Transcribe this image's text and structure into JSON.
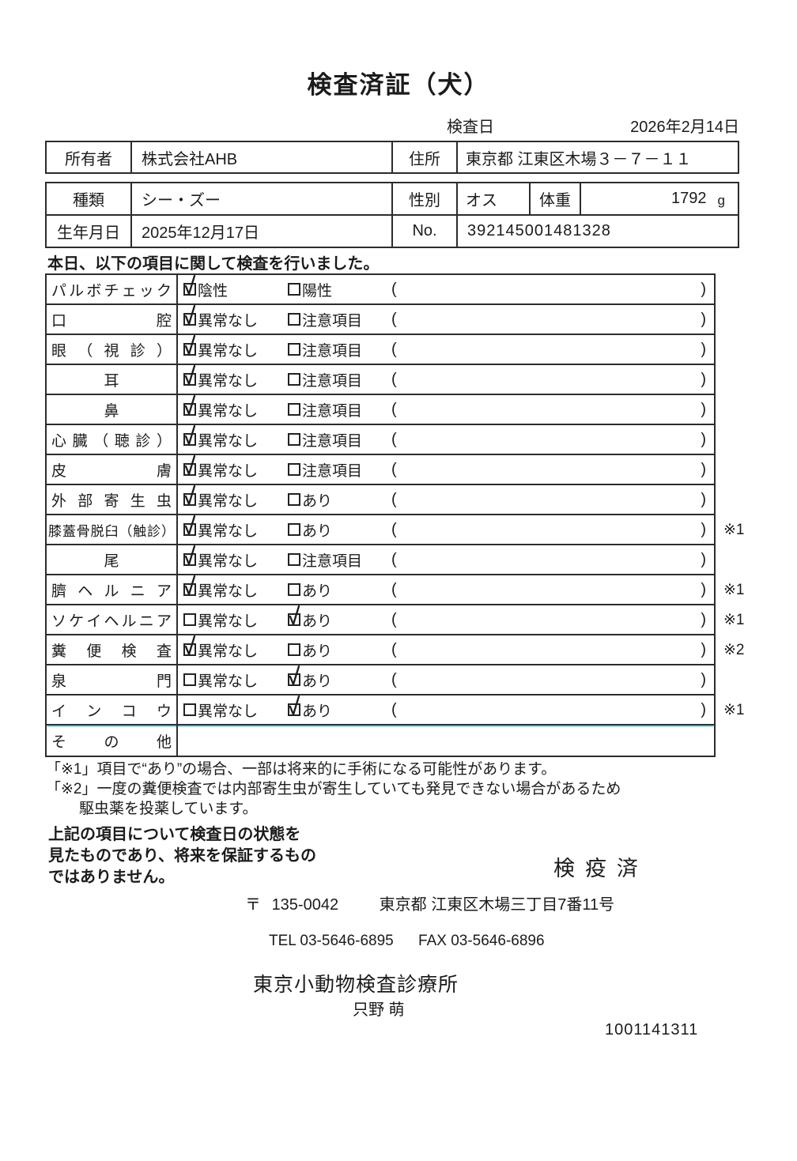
{
  "title": "検査済証（犬）",
  "exam_date": {
    "label": "検査日",
    "value": "2026年2月14日"
  },
  "owner": {
    "label": "所有者",
    "value": "株式会社AHB",
    "address_label": "住所",
    "address_value": "東京都 江東区木場３－７－１１"
  },
  "pet": {
    "breed_label": "種類",
    "breed_value": "シー・ズー",
    "sex_label": "性別",
    "sex_value": "オス",
    "weight_label": "体重",
    "weight_value": "1792",
    "weight_unit": "g",
    "birth_label": "生年月日",
    "birth_value": "2025年12月17日",
    "no_label": "No.",
    "no_value": "392145001481328"
  },
  "intro_text": "本日、以下の項目に関して検査を行いました。",
  "exam_table": {
    "paren_open": "(",
    "paren_close": ")",
    "rows": [
      {
        "label": "パルボチェック",
        "opt1": "陰性",
        "opt2": "陽性",
        "checked": "opt1",
        "note": ""
      },
      {
        "label": "口腔",
        "opt1": "異常なし",
        "opt2": "注意項目",
        "checked": "opt1",
        "note": ""
      },
      {
        "label": "眼（視診）",
        "opt1": "異常なし",
        "opt2": "注意項目",
        "checked": "opt1",
        "note": ""
      },
      {
        "label": "耳",
        "opt1": "異常なし",
        "opt2": "注意項目",
        "checked": "opt1",
        "note": ""
      },
      {
        "label": "鼻",
        "opt1": "異常なし",
        "opt2": "注意項目",
        "checked": "opt1",
        "note": ""
      },
      {
        "label": "心臓（聴診）",
        "opt1": "異常なし",
        "opt2": "注意項目",
        "checked": "opt1",
        "note": ""
      },
      {
        "label": "皮膚",
        "opt1": "異常なし",
        "opt2": "注意項目",
        "checked": "opt1",
        "note": ""
      },
      {
        "label": "外部寄生虫",
        "opt1": "異常なし",
        "opt2": "あり",
        "checked": "opt1",
        "note": ""
      },
      {
        "label": "膝蓋骨脱臼（触診）",
        "opt1": "異常なし",
        "opt2": "あり",
        "checked": "opt1",
        "note": "※1"
      },
      {
        "label": "尾",
        "opt1": "異常なし",
        "opt2": "注意項目",
        "checked": "opt1",
        "note": ""
      },
      {
        "label": "臍ヘルニア",
        "opt1": "異常なし",
        "opt2": "あり",
        "checked": "opt1",
        "note": "※1"
      },
      {
        "label": "ソケイヘルニア",
        "opt1": "異常なし",
        "opt2": "あり",
        "checked": "opt2",
        "note": "※1"
      },
      {
        "label": "糞便検査",
        "opt1": "異常なし",
        "opt2": "あり",
        "checked": "opt1",
        "note": "※2"
      },
      {
        "label": "泉門",
        "opt1": "異常なし",
        "opt2": "あり",
        "checked": "opt2",
        "note": ""
      },
      {
        "label": "インコウ",
        "opt1": "異常なし",
        "opt2": "あり",
        "checked": "opt2",
        "note": "※1"
      },
      {
        "label": "その他",
        "opt1": "",
        "opt2": "",
        "checked": "",
        "note": ""
      }
    ]
  },
  "footnotes": {
    "line1": "「※1」項目で“あり”の場合、一部は将来的に手術になる可能性があります。",
    "line2": "「※2」一度の糞便検査では内部寄生虫が寄生していても発見できない場合があるため",
    "line3": "駆虫薬を投薬しています。"
  },
  "disclaimer": {
    "line1": "上記の項目について検査日の状態を",
    "line2": "見たものであり、将来を保証するもの",
    "line3": "ではありません。"
  },
  "stamp": "検疫済",
  "clinic": {
    "postal_mark": "〒",
    "postal_code": "135-0042",
    "address": "東京都 江東区木場三丁目7番11号",
    "tel": "TEL 03-5646-6895",
    "fax": "FAX 03-5646-6896",
    "name": "東京小動物検査診療所",
    "examiner": "只野 萌"
  },
  "document_number": "1001141311"
}
